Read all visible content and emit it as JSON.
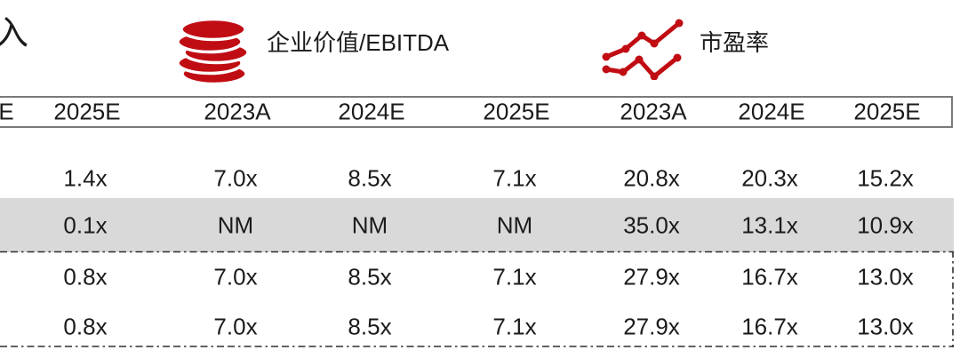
{
  "legend": {
    "revenue_label_partial": "入",
    "ev_ebitda_label": "企业价值/EBITDA",
    "pe_label": "市盈率",
    "icons": {
      "ev_ebitda": "coins-icon",
      "pe": "line-chart-icon"
    }
  },
  "colors": {
    "accent_red": "#C00D13",
    "highlight_row_bg": "#D9D9D9",
    "header_border": "#7A7A7A",
    "text": "#1B1B1B"
  },
  "table": {
    "column_headers": [
      "E",
      "2025E",
      "2023A",
      "2024E",
      "2025E",
      "2023A",
      "2024E",
      "2025E"
    ],
    "rows": [
      {
        "highlight": false,
        "values": [
          "1.4x",
          "7.0x",
          "8.5x",
          "7.1x",
          "20.8x",
          "20.3x",
          "15.2x"
        ]
      },
      {
        "highlight": true,
        "values": [
          "0.1x",
          "NM",
          "NM",
          "NM",
          "35.0x",
          "13.1x",
          "10.9x"
        ]
      },
      {
        "highlight": false,
        "values": [
          "0.8x",
          "7.0x",
          "8.5x",
          "7.1x",
          "27.9x",
          "16.7x",
          "13.0x"
        ]
      },
      {
        "highlight": false,
        "values": [
          "0.8x",
          "7.0x",
          "8.5x",
          "7.1x",
          "27.9x",
          "16.7x",
          "13.0x"
        ]
      }
    ]
  }
}
